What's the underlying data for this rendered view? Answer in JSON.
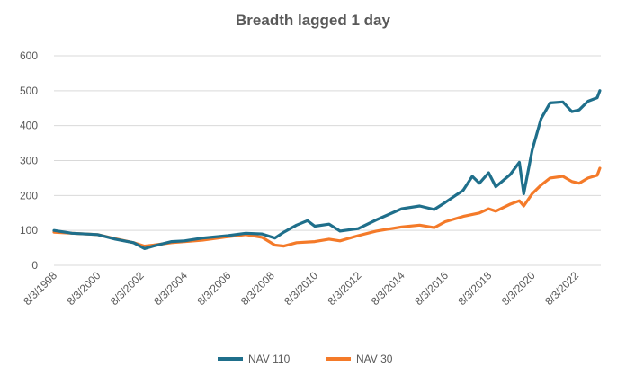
{
  "chart_data": {
    "type": "line",
    "title": "Breadth lagged 1 day",
    "xlabel": "",
    "ylabel": "",
    "ylim": [
      0,
      600
    ],
    "yticks": [
      0,
      100,
      200,
      300,
      400,
      500,
      600
    ],
    "x_tick_labels": [
      "8/3/1998",
      "8/3/2000",
      "8/3/2002",
      "8/3/2004",
      "8/3/2006",
      "8/3/2008",
      "8/3/2010",
      "8/3/2012",
      "8/3/2014",
      "8/3/2016",
      "8/3/2018",
      "8/3/2020",
      "8/3/2022"
    ],
    "xlim": [
      "1998-08-03",
      "2023-10-01"
    ],
    "grid": "horizontal",
    "legend_position": "bottom",
    "series": [
      {
        "name": "NAV 110",
        "color": "#1f6f8b",
        "points": [
          [
            "1998-08-03",
            100
          ],
          [
            "1999-06-01",
            92
          ],
          [
            "2000-08-03",
            88
          ],
          [
            "2001-06-01",
            75
          ],
          [
            "2002-04-01",
            65
          ],
          [
            "2002-10-01",
            48
          ],
          [
            "2003-03-01",
            55
          ],
          [
            "2004-01-01",
            68
          ],
          [
            "2004-08-03",
            70
          ],
          [
            "2005-06-01",
            78
          ],
          [
            "2006-08-03",
            85
          ],
          [
            "2007-06-01",
            92
          ],
          [
            "2008-03-01",
            90
          ],
          [
            "2008-10-01",
            78
          ],
          [
            "2009-03-01",
            95
          ],
          [
            "2009-10-01",
            115
          ],
          [
            "2010-04-01",
            128
          ],
          [
            "2010-08-03",
            112
          ],
          [
            "2011-04-01",
            118
          ],
          [
            "2011-10-01",
            98
          ],
          [
            "2012-08-03",
            105
          ],
          [
            "2013-06-01",
            130
          ],
          [
            "2014-08-03",
            162
          ],
          [
            "2015-06-01",
            170
          ],
          [
            "2016-02-01",
            160
          ],
          [
            "2016-08-03",
            180
          ],
          [
            "2017-06-01",
            215
          ],
          [
            "2017-11-01",
            255
          ],
          [
            "2018-03-01",
            235
          ],
          [
            "2018-08-03",
            265
          ],
          [
            "2018-12-01",
            225
          ],
          [
            "2019-08-01",
            260
          ],
          [
            "2020-01-01",
            295
          ],
          [
            "2020-03-15",
            205
          ],
          [
            "2020-08-03",
            330
          ],
          [
            "2021-01-01",
            420
          ],
          [
            "2021-06-01",
            465
          ],
          [
            "2022-01-01",
            468
          ],
          [
            "2022-06-01",
            440
          ],
          [
            "2022-10-01",
            445
          ],
          [
            "2023-03-01",
            470
          ],
          [
            "2023-08-01",
            480
          ],
          [
            "2023-09-15",
            500
          ]
        ]
      },
      {
        "name": "NAV 30",
        "color": "#f47a29",
        "points": [
          [
            "1998-08-03",
            95
          ],
          [
            "1999-06-01",
            92
          ],
          [
            "2000-08-03",
            88
          ],
          [
            "2001-06-01",
            76
          ],
          [
            "2002-04-01",
            65
          ],
          [
            "2002-10-01",
            55
          ],
          [
            "2003-03-01",
            58
          ],
          [
            "2004-01-01",
            65
          ],
          [
            "2004-08-03",
            68
          ],
          [
            "2005-06-01",
            72
          ],
          [
            "2006-08-03",
            82
          ],
          [
            "2007-06-01",
            88
          ],
          [
            "2008-03-01",
            80
          ],
          [
            "2008-10-01",
            58
          ],
          [
            "2009-03-01",
            55
          ],
          [
            "2009-10-01",
            65
          ],
          [
            "2010-08-03",
            68
          ],
          [
            "2011-04-01",
            75
          ],
          [
            "2011-10-01",
            70
          ],
          [
            "2012-08-03",
            85
          ],
          [
            "2013-06-01",
            98
          ],
          [
            "2014-08-03",
            110
          ],
          [
            "2015-06-01",
            115
          ],
          [
            "2016-02-01",
            108
          ],
          [
            "2016-08-03",
            125
          ],
          [
            "2017-06-01",
            140
          ],
          [
            "2018-03-01",
            150
          ],
          [
            "2018-08-03",
            162
          ],
          [
            "2018-12-01",
            155
          ],
          [
            "2019-08-01",
            175
          ],
          [
            "2020-01-01",
            185
          ],
          [
            "2020-03-15",
            170
          ],
          [
            "2020-08-03",
            205
          ],
          [
            "2021-01-01",
            230
          ],
          [
            "2021-06-01",
            250
          ],
          [
            "2022-01-01",
            255
          ],
          [
            "2022-06-01",
            240
          ],
          [
            "2022-10-01",
            235
          ],
          [
            "2023-03-01",
            250
          ],
          [
            "2023-08-01",
            258
          ],
          [
            "2023-09-15",
            278
          ]
        ]
      }
    ]
  }
}
